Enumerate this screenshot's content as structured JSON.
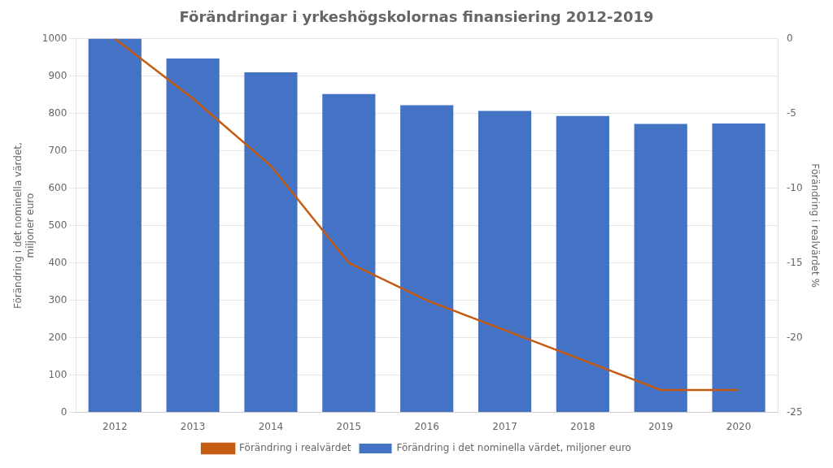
{
  "chart_data": {
    "type": "bar",
    "title": "Förändringar i yrkeshögskolornas finansiering 2012-2019",
    "ylabel": "Förändring i det nominella värdet,\nmiljoner euro",
    "y2label": "Förändring i realvärdet %",
    "categories": [
      "2012",
      "2013",
      "2014",
      "2015",
      "2016",
      "2017",
      "2018",
      "2019",
      "2020"
    ],
    "series": [
      {
        "name": "Förändring i det nominella värdet, miljoner euro",
        "type": "bar",
        "color": "#4472C4",
        "values": [
          1000,
          947,
          910,
          852,
          822,
          807,
          793,
          772,
          773
        ]
      },
      {
        "name": "Förändring i realvärdet",
        "type": "line",
        "axis": "y2",
        "color": "#C55A11",
        "values": [
          0.0,
          -4.0,
          -8.5,
          -15.0,
          -17.5,
          -19.5,
          -21.5,
          -23.5,
          -23.5
        ]
      }
    ],
    "ylim": [
      0,
      1000
    ],
    "yticks": [
      0,
      100,
      200,
      300,
      400,
      500,
      600,
      700,
      800,
      900,
      1000
    ],
    "y2lim": [
      -25,
      0
    ],
    "y2ticks": [
      -25,
      -20,
      -15,
      -10,
      -5,
      0
    ],
    "grid": true,
    "legend": "bottom"
  }
}
